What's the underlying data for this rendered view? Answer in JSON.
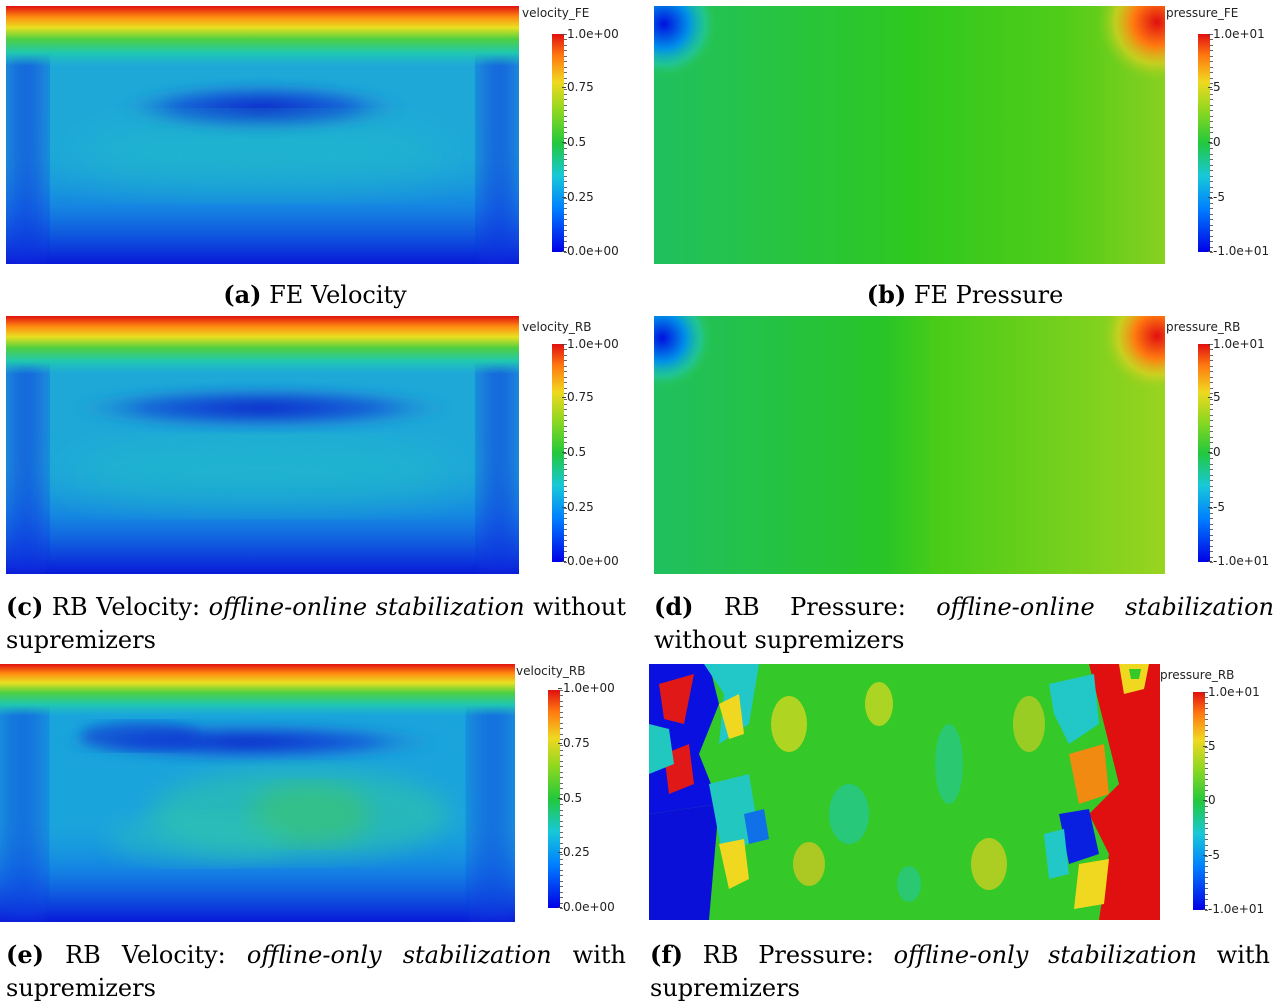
{
  "panels": {
    "a": {
      "colorbar_title": "velocity_FE",
      "ticks": [
        "1.0e+00",
        "0.75",
        "0.5",
        "0.25",
        "0.0e+00"
      ],
      "caption_label": "(a)",
      "caption_text": "FE Velocity"
    },
    "b": {
      "colorbar_title": "pressure_FE",
      "ticks": [
        "1.0e+01",
        "5",
        "0",
        "-5",
        "-1.0e+01"
      ],
      "caption_label": "(b)",
      "caption_text": "FE Pressure"
    },
    "c": {
      "colorbar_title": "velocity_RB",
      "ticks": [
        "1.0e+00",
        "0.75",
        "0.5",
        "0.25",
        "0.0e+00"
      ],
      "caption_label": "(c)",
      "caption_prefix": "RB Velocity:",
      "caption_italic": "offline-online stabilization",
      "caption_suffix": "without supremizers"
    },
    "d": {
      "colorbar_title": "pressure_RB",
      "ticks": [
        "1.0e+01",
        "5",
        "0",
        "-5",
        "-1.0e+01"
      ],
      "caption_label": "(d)",
      "caption_prefix": "RB Pressure:",
      "caption_italic": "offline-online stabilization",
      "caption_suffix": "without supremizers"
    },
    "e": {
      "colorbar_title": "velocity_RB",
      "ticks": [
        "1.0e+00",
        "0.75",
        "0.5",
        "0.25",
        "0.0e+00"
      ],
      "caption_label": "(e)",
      "caption_prefix": "RB Velocity:",
      "caption_italic": "offline-only stabilization",
      "caption_suffix": "with supremizers"
    },
    "f": {
      "colorbar_title": "pressure_RB",
      "ticks": [
        "1.0e+01",
        "5",
        "0",
        "-5",
        "-1.0e+01"
      ],
      "caption_label": "(f)",
      "caption_prefix": "RB Pressure:",
      "caption_italic": "offline-only stabilization",
      "caption_suffix": "with supremizers"
    }
  }
}
